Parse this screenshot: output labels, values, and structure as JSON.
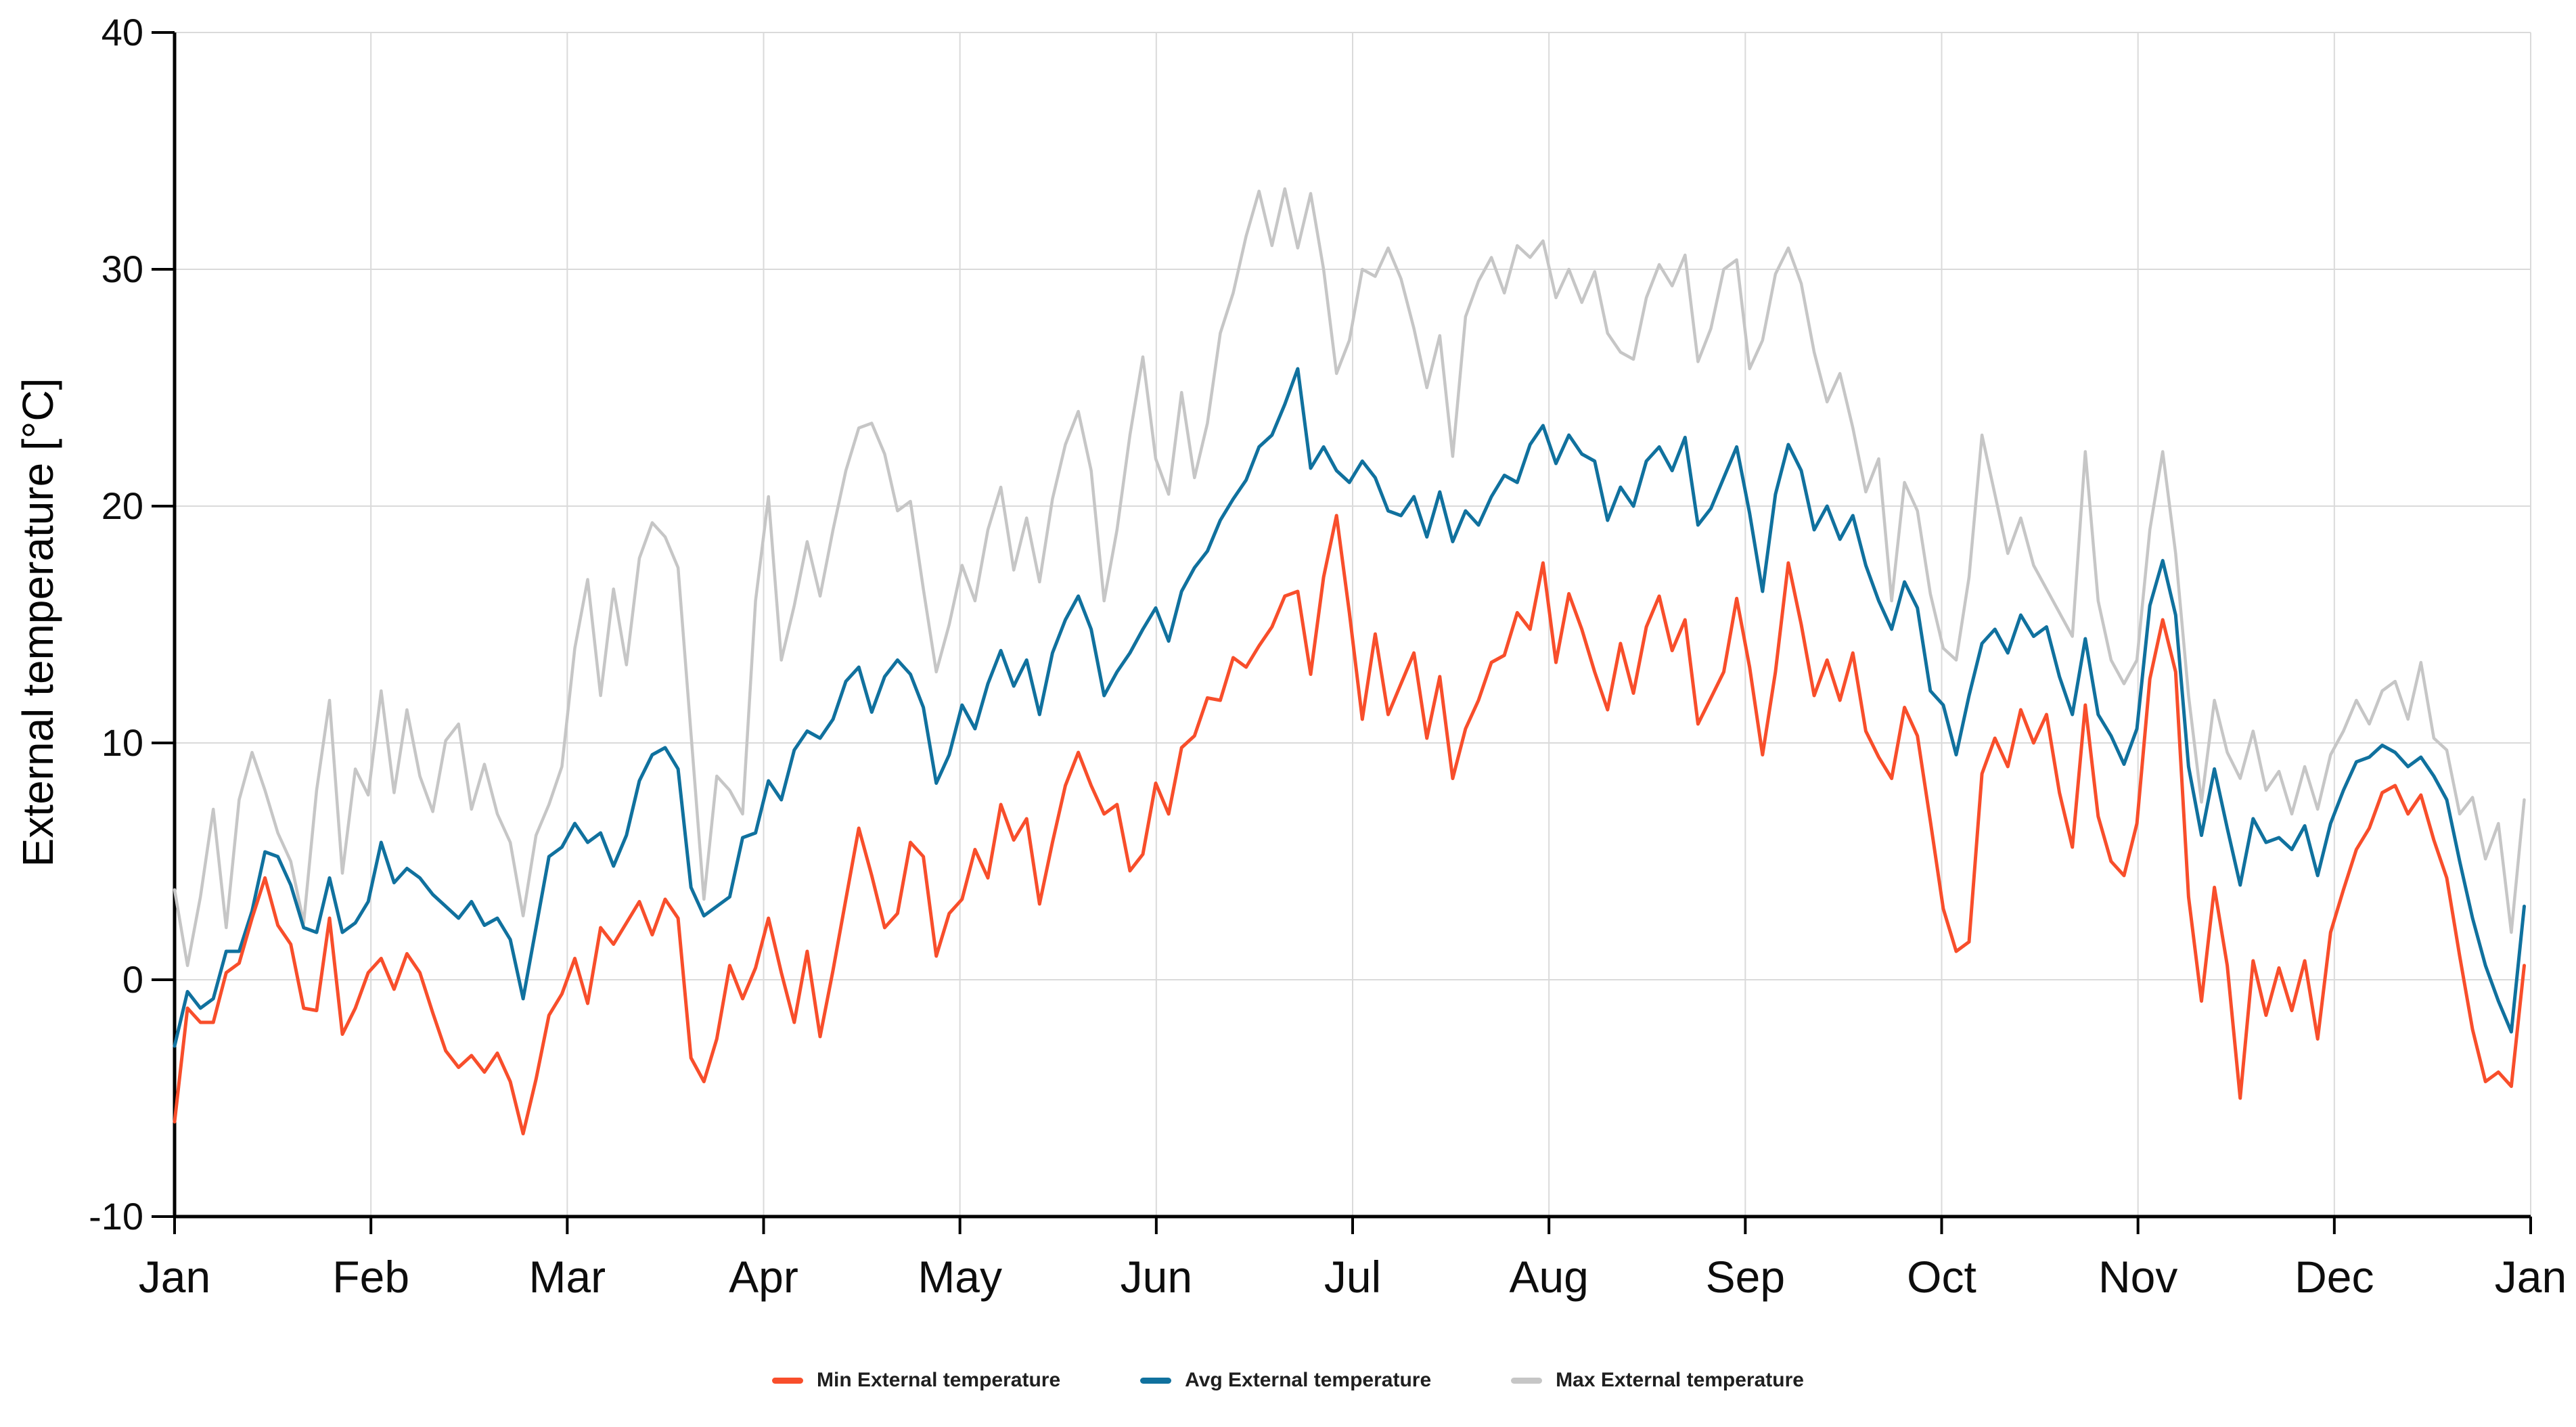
{
  "page": {
    "background": "#ffffff"
  },
  "chart_data": {
    "type": "line",
    "title": "",
    "xlabel": "",
    "ylabel": "External temperature [°C]",
    "ylim": [
      -10,
      40
    ],
    "y_ticks": [
      40,
      30,
      20,
      10,
      0,
      -10
    ],
    "x_tick_labels": [
      "Jan",
      "Feb",
      "Mar",
      "Apr",
      "May",
      "Jun",
      "Jul",
      "Aug",
      "Sep",
      "Oct",
      "Nov",
      "Dec",
      "Jan"
    ],
    "grid": true,
    "legend_position": "bottom-center",
    "x_unit": "day_of_year",
    "x_range_days": 365,
    "x": [
      0,
      2,
      4,
      6,
      8,
      10,
      12,
      14,
      16,
      18,
      20,
      22,
      24,
      26,
      28,
      30,
      32,
      34,
      36,
      38,
      40,
      42,
      44,
      46,
      48,
      50,
      52,
      54,
      56,
      58,
      60,
      62,
      64,
      66,
      68,
      70,
      72,
      74,
      76,
      78,
      80,
      82,
      84,
      86,
      88,
      90,
      92,
      94,
      96,
      98,
      100,
      102,
      104,
      106,
      108,
      110,
      112,
      114,
      116,
      118,
      120,
      122,
      124,
      126,
      128,
      130,
      132,
      134,
      136,
      138,
      140,
      142,
      144,
      146,
      148,
      150,
      152,
      154,
      156,
      158,
      160,
      162,
      164,
      166,
      168,
      170,
      172,
      174,
      176,
      178,
      180,
      182,
      184,
      186,
      188,
      190,
      192,
      194,
      196,
      198,
      200,
      202,
      204,
      206,
      208,
      210,
      212,
      214,
      216,
      218,
      220,
      222,
      224,
      226,
      228,
      230,
      232,
      234,
      236,
      238,
      240,
      242,
      244,
      246,
      248,
      250,
      252,
      254,
      256,
      258,
      260,
      262,
      264,
      266,
      268,
      270,
      272,
      274,
      276,
      278,
      280,
      282,
      284,
      286,
      288,
      290,
      292,
      294,
      296,
      298,
      300,
      302,
      304,
      306,
      308,
      310,
      312,
      314,
      316,
      318,
      320,
      322,
      324,
      326,
      328,
      330,
      332,
      334,
      336,
      338,
      340,
      342,
      344,
      346,
      348,
      350,
      352,
      354,
      356,
      358,
      360,
      362,
      364
    ],
    "series": [
      {
        "name": "Min External temperature",
        "color": "#f84e2b",
        "stroke_width": 5,
        "values": [
          -6.0,
          -1.2,
          -1.8,
          -1.8,
          0.3,
          0.7,
          2.6,
          4.3,
          2.3,
          1.5,
          -1.2,
          -1.3,
          2.6,
          -2.3,
          -1.2,
          0.3,
          0.9,
          -0.4,
          1.1,
          0.3,
          -1.4,
          -3.0,
          -3.7,
          -3.2,
          -3.9,
          -3.1,
          -4.3,
          -6.5,
          -4.2,
          -1.5,
          -0.6,
          0.9,
          -1.0,
          2.2,
          1.5,
          2.4,
          3.3,
          1.9,
          3.4,
          2.6,
          -3.3,
          -4.3,
          -2.5,
          0.6,
          -0.8,
          0.5,
          2.6,
          0.3,
          -1.8,
          1.2,
          -2.4,
          0.4,
          3.4,
          6.4,
          4.4,
          2.2,
          2.8,
          5.8,
          5.2,
          1.0,
          2.8,
          3.4,
          5.5,
          4.3,
          7.4,
          5.9,
          6.8,
          3.2,
          5.8,
          8.2,
          9.6,
          8.2,
          7.0,
          7.4,
          4.6,
          5.3,
          8.3,
          7.0,
          9.8,
          10.3,
          11.9,
          11.8,
          13.6,
          13.2,
          14.1,
          14.9,
          16.2,
          16.4,
          12.9,
          17.0,
          19.6,
          15.5,
          11.0,
          14.6,
          11.2,
          12.5,
          13.8,
          10.2,
          12.8,
          8.5,
          10.6,
          11.8,
          13.4,
          13.7,
          15.5,
          14.8,
          17.6,
          13.4,
          16.3,
          14.8,
          13.0,
          11.4,
          14.2,
          12.1,
          14.9,
          16.2,
          13.9,
          15.2,
          10.8,
          11.9,
          13.0,
          16.1,
          13.2,
          9.5,
          13.0,
          17.6,
          15.0,
          12.0,
          13.5,
          11.8,
          13.8,
          10.5,
          9.4,
          8.5,
          11.5,
          10.3,
          6.7,
          3.0,
          1.2,
          1.6,
          8.7,
          10.2,
          9.0,
          11.4,
          10.0,
          11.2,
          7.9,
          5.6,
          11.6,
          6.9,
          5.0,
          4.4,
          6.6,
          12.7,
          15.2,
          13.0,
          3.5,
          -0.9,
          3.9,
          0.6,
          -5.0,
          0.8,
          -1.5,
          0.5,
          -1.3,
          0.8,
          -2.5,
          2.0,
          3.8,
          5.5,
          6.4,
          7.9,
          8.2,
          7.0,
          7.8,
          5.9,
          4.3,
          1.0,
          -2.1,
          -4.3,
          -3.9,
          -4.5,
          0.6
        ]
      },
      {
        "name": "Avg External temperature",
        "color": "#10719e",
        "stroke_width": 5,
        "values": [
          -2.8,
          -0.5,
          -1.2,
          -0.8,
          1.2,
          1.2,
          2.9,
          5.4,
          5.2,
          4.0,
          2.2,
          2.0,
          4.3,
          2.0,
          2.4,
          3.3,
          5.8,
          4.1,
          4.7,
          4.3,
          3.6,
          3.1,
          2.6,
          3.3,
          2.3,
          2.6,
          1.7,
          -0.8,
          2.2,
          5.2,
          5.6,
          6.6,
          5.8,
          6.2,
          4.8,
          6.1,
          8.4,
          9.5,
          9.8,
          8.9,
          3.9,
          2.7,
          3.1,
          3.5,
          6.0,
          6.2,
          8.4,
          7.6,
          9.7,
          10.5,
          10.2,
          11.0,
          12.6,
          13.2,
          11.3,
          12.8,
          13.5,
          12.9,
          11.5,
          8.3,
          9.5,
          11.6,
          10.6,
          12.5,
          13.9,
          12.4,
          13.5,
          11.2,
          13.8,
          15.2,
          16.2,
          14.8,
          12.0,
          13.0,
          13.8,
          14.8,
          15.7,
          14.3,
          16.4,
          17.4,
          18.1,
          19.4,
          20.3,
          21.1,
          22.5,
          23.0,
          24.3,
          25.8,
          21.6,
          22.5,
          21.5,
          21.0,
          21.9,
          21.2,
          19.8,
          19.6,
          20.4,
          18.7,
          20.6,
          18.5,
          19.8,
          19.2,
          20.4,
          21.3,
          21.0,
          22.6,
          23.4,
          21.8,
          23.0,
          22.2,
          21.9,
          19.4,
          20.8,
          20.0,
          21.9,
          22.5,
          21.5,
          22.9,
          19.2,
          19.9,
          21.2,
          22.5,
          19.7,
          16.4,
          20.5,
          22.6,
          21.5,
          19.0,
          20.0,
          18.6,
          19.6,
          17.5,
          16.0,
          14.8,
          16.8,
          15.7,
          12.2,
          11.6,
          9.5,
          12.0,
          14.2,
          14.8,
          13.8,
          15.4,
          14.5,
          14.9,
          12.8,
          11.2,
          14.4,
          11.2,
          10.3,
          9.1,
          10.6,
          15.8,
          17.7,
          15.4,
          9.0,
          6.1,
          8.9,
          6.4,
          4.0,
          6.8,
          5.8,
          6.0,
          5.5,
          6.5,
          4.4,
          6.6,
          8.0,
          9.2,
          9.4,
          9.9,
          9.6,
          9.0,
          9.4,
          8.6,
          7.6,
          5.0,
          2.6,
          0.6,
          -0.9,
          -2.2,
          3.1
        ]
      },
      {
        "name": "Max External temperature",
        "color": "#c6c6c6",
        "stroke_width": 4.5,
        "values": [
          3.8,
          0.6,
          3.5,
          7.2,
          2.2,
          7.6,
          9.6,
          8.0,
          6.2,
          5.0,
          2.4,
          8.0,
          11.8,
          4.5,
          8.9,
          7.8,
          12.2,
          7.9,
          11.4,
          8.6,
          7.1,
          10.1,
          10.8,
          7.2,
          9.1,
          7.0,
          5.8,
          2.7,
          6.1,
          7.4,
          9.0,
          14.0,
          16.9,
          12.0,
          16.5,
          13.3,
          17.8,
          19.3,
          18.7,
          17.4,
          10.4,
          3.4,
          8.6,
          8.0,
          7.0,
          16.0,
          20.4,
          13.5,
          15.8,
          18.5,
          16.2,
          19.0,
          21.5,
          23.3,
          23.5,
          22.2,
          19.8,
          20.2,
          16.5,
          13.0,
          15.0,
          17.5,
          16.0,
          19.0,
          20.8,
          17.3,
          19.5,
          16.8,
          20.3,
          22.6,
          24.0,
          21.5,
          16.0,
          19.0,
          23.0,
          26.3,
          22.0,
          20.5,
          24.8,
          21.2,
          23.5,
          27.3,
          29.0,
          31.4,
          33.3,
          31.0,
          33.4,
          30.9,
          33.2,
          30.0,
          25.6,
          27.0,
          30.0,
          29.7,
          30.9,
          29.6,
          27.5,
          25.0,
          27.2,
          22.1,
          28.0,
          29.5,
          30.5,
          29.0,
          31.0,
          30.5,
          31.2,
          28.8,
          30.0,
          28.6,
          29.9,
          27.3,
          26.5,
          26.2,
          28.8,
          30.2,
          29.3,
          30.6,
          26.1,
          27.5,
          30.0,
          30.4,
          25.8,
          27.0,
          29.8,
          30.9,
          29.4,
          26.5,
          24.4,
          25.6,
          23.3,
          20.6,
          22.0,
          16.0,
          21.0,
          19.8,
          16.3,
          14.0,
          13.5,
          17.0,
          23.0,
          20.5,
          18.0,
          19.5,
          17.5,
          16.5,
          15.5,
          14.5,
          22.3,
          16.0,
          13.5,
          12.5,
          13.5,
          19.0,
          22.3,
          18.0,
          12.0,
          7.5,
          11.8,
          9.6,
          8.5,
          10.5,
          8.0,
          8.8,
          7.0,
          9.0,
          7.2,
          9.5,
          10.5,
          11.8,
          10.8,
          12.2,
          12.6,
          11.0,
          13.4,
          10.2,
          9.7,
          7.0,
          7.7,
          5.1,
          6.6,
          2.0,
          7.6
        ]
      }
    ],
    "legend": [
      {
        "label": "Min External temperature",
        "color": "#f84e2b"
      },
      {
        "label": "Avg External temperature",
        "color": "#10719e"
      },
      {
        "label": "Max External temperature",
        "color": "#c6c6c6"
      }
    ]
  }
}
